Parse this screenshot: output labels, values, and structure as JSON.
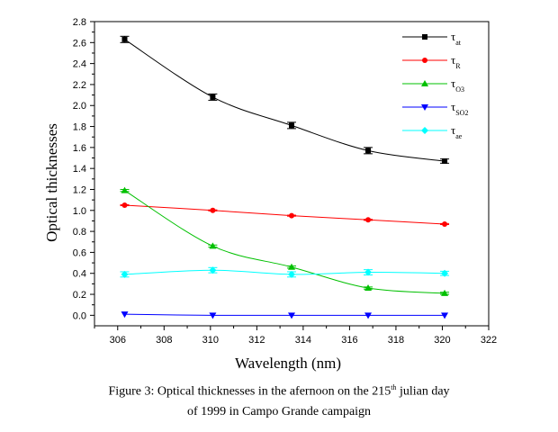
{
  "chart_data": {
    "type": "line",
    "ylabel": "Optical thicknesses",
    "xlabel": "Wavelength (nm)",
    "xlim": [
      305,
      322
    ],
    "ylim": [
      -0.1,
      2.8
    ],
    "xticks": [
      306,
      308,
      310,
      312,
      314,
      316,
      318,
      320,
      322
    ],
    "yticks": [
      0.0,
      0.2,
      0.4,
      0.6,
      0.8,
      1.0,
      1.2,
      1.4,
      1.6,
      1.8,
      2.0,
      2.2,
      2.4,
      2.6,
      2.8
    ],
    "legend_position": "top-right",
    "grid": false,
    "x": [
      306.3,
      310.1,
      313.5,
      316.8,
      320.1
    ],
    "series": [
      {
        "name": "τat",
        "symbol": "τ",
        "subscript": "at",
        "marker": "square",
        "color": "#000000",
        "values": [
          2.63,
          2.08,
          1.81,
          1.57,
          1.47
        ],
        "errors": [
          0.03,
          0.03,
          0.03,
          0.03,
          0.02
        ]
      },
      {
        "name": "τR",
        "symbol": "τ",
        "subscript": "R",
        "marker": "circle",
        "color": "#ff0000",
        "values": [
          1.05,
          1.0,
          0.95,
          0.91,
          0.87
        ],
        "errors": [
          0.005,
          0.005,
          0.005,
          0.005,
          0.005
        ]
      },
      {
        "name": "τO3",
        "symbol": "τ",
        "subscript": "O3",
        "marker": "triangle-up",
        "color": "#00c000",
        "values": [
          1.19,
          0.66,
          0.46,
          0.26,
          0.21
        ],
        "errors": [
          0.01,
          0.01,
          0.01,
          0.01,
          0.01
        ]
      },
      {
        "name": "τSO2",
        "symbol": "τ",
        "subscript": "SO2",
        "marker": "triangle-down",
        "color": "#0000ff",
        "values": [
          0.01,
          0.0,
          0.0,
          0.0,
          0.0
        ],
        "errors": [
          0,
          0,
          0,
          0,
          0
        ]
      },
      {
        "name": "τae",
        "symbol": "τ",
        "subscript": "ae",
        "marker": "diamond",
        "color": "#00ffff",
        "values": [
          0.39,
          0.43,
          0.39,
          0.41,
          0.4
        ],
        "errors": [
          0.025,
          0.025,
          0.025,
          0.025,
          0.02
        ]
      }
    ]
  },
  "caption": {
    "line1_prefix": "Figure 3: Optical thicknesses in the afernoon on the 215",
    "line1_sup": "th",
    "line1_suffix": " julian day",
    "line2": "of 1999 in Campo Grande campaign"
  }
}
